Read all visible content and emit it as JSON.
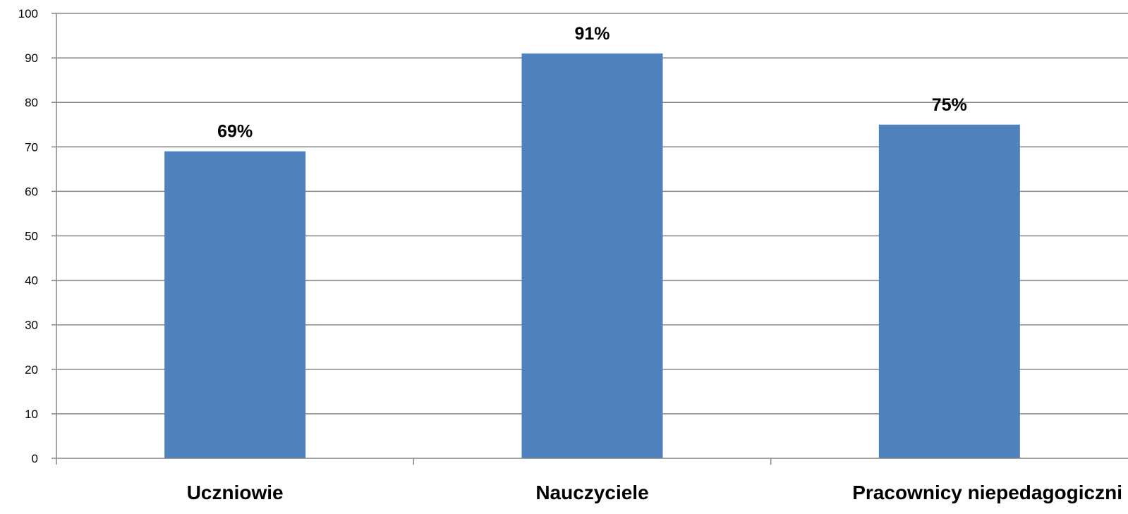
{
  "chart_data": {
    "type": "bar",
    "categories": [
      "Uczniowie",
      "Nauczyciele",
      "Pracownicy niepedagogiczni"
    ],
    "values": [
      69,
      91,
      75
    ],
    "data_labels": [
      "69%",
      "91%",
      "75%"
    ],
    "ylim": [
      0,
      100
    ],
    "yticks": [
      0,
      10,
      20,
      30,
      40,
      50,
      60,
      70,
      80,
      90,
      100
    ],
    "grid": true,
    "legend": "none",
    "bar_color": "#4F81BD",
    "gridline_color": "#868686"
  }
}
